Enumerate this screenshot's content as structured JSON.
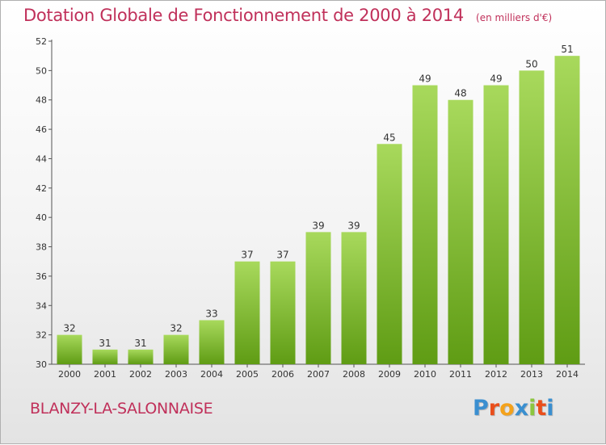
{
  "header": {
    "title": "Dotation Globale de Fonctionnement de 2000 à 2014",
    "subtitle": "(en milliers d'€)"
  },
  "commune": "BLANZY-LA-SALONNAISE",
  "logo": {
    "text": "Proxiti",
    "letters": [
      "P",
      "r",
      "o",
      "x",
      "i",
      "t",
      "i"
    ],
    "colors": [
      "#3a8fd0",
      "#e94e1b",
      "#f4a21b",
      "#3a8fd0",
      "#8cc63f",
      "#e94e1b",
      "#3a8fd0"
    ]
  },
  "colors": {
    "bar_light": "#a8d95c",
    "bar_dark": "#5f9c14",
    "accent": "#c0305a"
  },
  "chart_data": {
    "type": "bar",
    "categories": [
      "2000",
      "2001",
      "2002",
      "2003",
      "2004",
      "2005",
      "2006",
      "2007",
      "2008",
      "2009",
      "2010",
      "2011",
      "2012",
      "2013",
      "2014"
    ],
    "values": [
      32,
      31,
      31,
      32,
      33,
      37,
      37,
      39,
      39,
      45,
      49,
      48,
      49,
      50,
      51
    ],
    "title": "Dotation Globale de Fonctionnement de 2000 à 2014",
    "subtitle": "(en milliers d'€)",
    "xlabel": "",
    "ylabel": "",
    "ylim": [
      30,
      52
    ],
    "yticks": [
      30,
      32,
      34,
      36,
      38,
      40,
      42,
      44,
      46,
      48,
      50,
      52
    ],
    "grid": false,
    "legend": "none"
  }
}
